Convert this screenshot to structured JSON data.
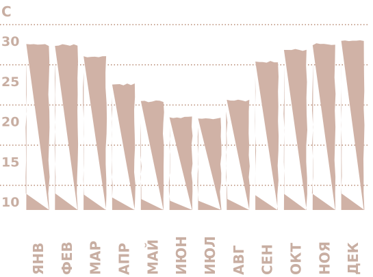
{
  "chart_data": {
    "type": "bar",
    "unit_label": "С",
    "categories": [
      "ЯНВ",
      "ФЕВ",
      "МАР",
      "АПР",
      "МАЙ",
      "ИЮН",
      "ИЮЛ",
      "АВГ",
      "СЕН",
      "ОКТ",
      "НОЯ",
      "ДЕК"
    ],
    "values": [
      29.5,
      29.5,
      28.0,
      24.6,
      22.5,
      20.5,
      20.4,
      22.6,
      27.4,
      28.9,
      29.6,
      30.1
    ],
    "y_ticks": [
      10,
      15,
      20,
      25,
      30
    ],
    "ylim": [
      8.5,
      33
    ],
    "grid": true,
    "grid_style": "dotted",
    "colors": {
      "bar": "#d0b2a6",
      "label": "#c8aea2",
      "grid": "#b78a73"
    }
  }
}
